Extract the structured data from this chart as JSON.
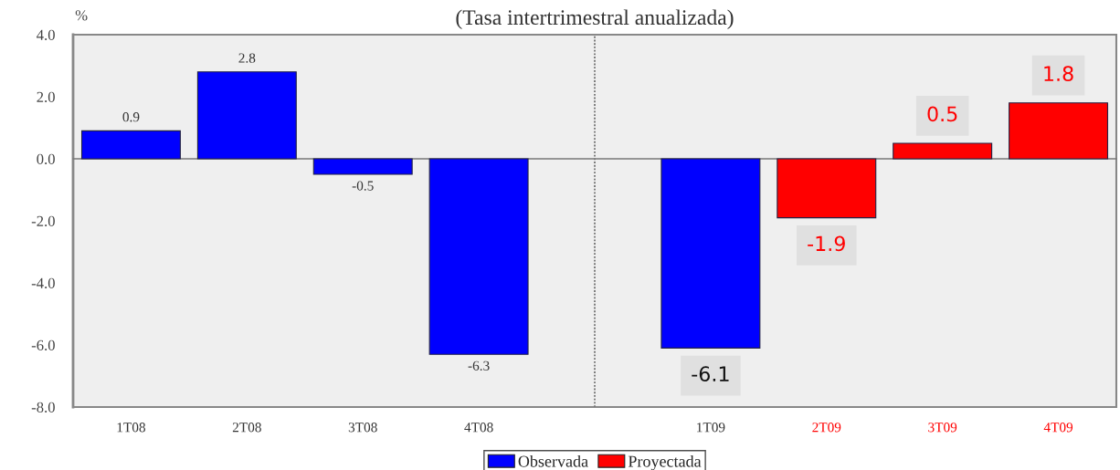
{
  "chart_data": {
    "type": "bar",
    "title": "(Tasa intertrimestral anualizada)",
    "ylabel": "%",
    "categories": [
      "1T08",
      "2T08",
      "3T08",
      "4T08",
      null,
      "1T09",
      "2T09",
      "3T09",
      "4T09"
    ],
    "series": [
      {
        "name": "Observada",
        "color": "#0000ff",
        "values": [
          0.9,
          2.8,
          -0.5,
          -6.3,
          null,
          -6.1,
          null,
          null,
          null
        ]
      },
      {
        "name": "Proyectada",
        "color": "#ff0000",
        "values": [
          null,
          null,
          null,
          null,
          null,
          null,
          -1.9,
          0.5,
          1.8
        ]
      }
    ],
    "data_labels": true,
    "ylim": [
      -8,
      4
    ],
    "yticks": [
      {
        "value": -8,
        "label": "-8.0"
      },
      {
        "value": -6,
        "label": "-6.0"
      },
      {
        "value": -4,
        "label": "-4.0"
      },
      {
        "value": -2,
        "label": "-2.0"
      },
      {
        "value": 0,
        "label": "0.0"
      },
      {
        "value": 2,
        "label": "2.0"
      },
      {
        "value": 4,
        "label": "4.0"
      }
    ],
    "legend": "bottom"
  }
}
